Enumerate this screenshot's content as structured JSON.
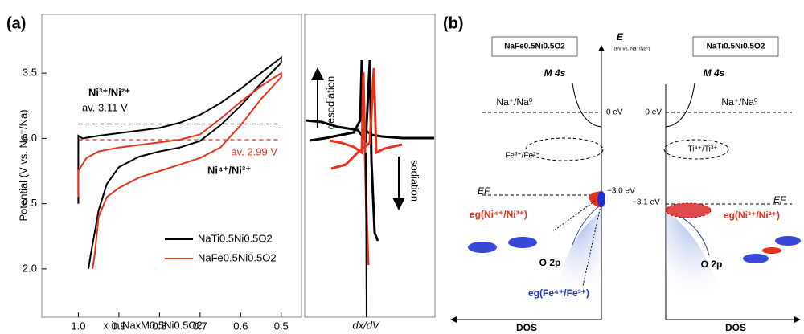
{
  "panel_labels": [
    "(a)",
    "(b)"
  ],
  "chart_data": {
    "type": "line",
    "x_label": "x in NaxM0.5Ni0.5O2",
    "y_label": "Potential (V vs. Na⁺/Na)",
    "xlim": [
      1.09,
      0.45
    ],
    "ylim": [
      1.63,
      3.95
    ],
    "xticks": [
      {
        "value": 1,
        "label": "1.0"
      },
      0.9,
      0.8,
      0.7,
      0.6,
      0.5
    ],
    "yticks": [
      {
        "value": 2,
        "label": "2.0"
      },
      {
        "value": 2.5,
        "label": "2.5"
      },
      {
        "value": 3,
        "label": "3.0"
      },
      {
        "value": 3.5,
        "label": "3.5"
      }
    ],
    "series": [
      {
        "name": "NaTi0.5Ni0.5O2",
        "color": "#000000",
        "x": [
          1.0,
          1.0,
          0.99,
          0.95,
          0.9,
          0.85,
          0.8,
          0.75,
          0.7,
          0.65,
          0.6,
          0.55,
          0.5,
          0.5,
          0.55,
          0.6,
          0.65,
          0.7,
          0.75,
          0.8,
          0.85,
          0.9,
          0.93,
          0.95,
          0.97,
          0.975
        ],
        "values": [
          2.5,
          3.02,
          3.0,
          3.02,
          3.04,
          3.06,
          3.08,
          3.12,
          3.18,
          3.27,
          3.38,
          3.5,
          3.62,
          3.58,
          3.42,
          3.25,
          3.1,
          2.98,
          2.93,
          2.9,
          2.86,
          2.78,
          2.65,
          2.45,
          2.1,
          2.0
        ]
      },
      {
        "name": "NaFe0.5Ni0.5O2",
        "color": "#e8321e",
        "x": [
          1.0,
          1.0,
          0.98,
          0.95,
          0.9,
          0.85,
          0.8,
          0.75,
          0.7,
          0.65,
          0.6,
          0.55,
          0.5,
          0.5,
          0.55,
          0.6,
          0.65,
          0.7,
          0.75,
          0.8,
          0.85,
          0.9,
          0.93,
          0.95,
          0.96,
          0.965
        ],
        "values": [
          2.55,
          2.75,
          2.85,
          2.9,
          2.93,
          2.95,
          2.97,
          2.99,
          3.03,
          3.15,
          3.28,
          3.4,
          3.5,
          3.47,
          3.3,
          3.1,
          2.93,
          2.85,
          2.8,
          2.75,
          2.7,
          2.62,
          2.55,
          2.4,
          2.1,
          2.0
        ]
      }
    ],
    "hlines": [
      {
        "value": 3.11,
        "color": "#000000",
        "label": "av. 3.11 V"
      },
      {
        "value": 2.99,
        "color": "#e8321e",
        "label": "av. 2.99 V"
      }
    ],
    "annotations": [
      "Ni³⁺/Ni²⁺",
      "Ni⁴⁺/Ni³⁺"
    ],
    "side_panel": {
      "x_label": "dx/dV",
      "up_label": "desodiation",
      "down_label": "sodiation"
    }
  },
  "panel_b": {
    "left_box": "NaFe0.5Ni0.5O2",
    "right_box": "NaTi0.5Ni0.5O2",
    "axis_title": "E",
    "axis_unit": "(eV vs. Na⁺/Na⁰)",
    "m4s": [
      "M 4s",
      "M 4s"
    ],
    "na_level": [
      "Na⁺/Na⁰",
      "Na⁺/Na⁰"
    ],
    "zero": [
      "0 eV",
      "0 eV"
    ],
    "fe_couple": "Fe³⁺/Fe²⁺",
    "ti_couple": "Ti⁴⁺/Ti³⁺",
    "ef": [
      "EF",
      "EF"
    ],
    "left_ef_value": "−3.0 eV",
    "right_ef_value": "−3.1 eV",
    "left_eg": "eg(Ni⁴⁺/Ni³⁺)",
    "right_eg": "eg(Ni³⁺/Ni²⁺)",
    "o2p": [
      "O 2p",
      "O 2p"
    ],
    "fe_eg": "eg(Fe⁴⁺/Fe³⁺)",
    "dos": [
      "DOS",
      "DOS"
    ]
  }
}
